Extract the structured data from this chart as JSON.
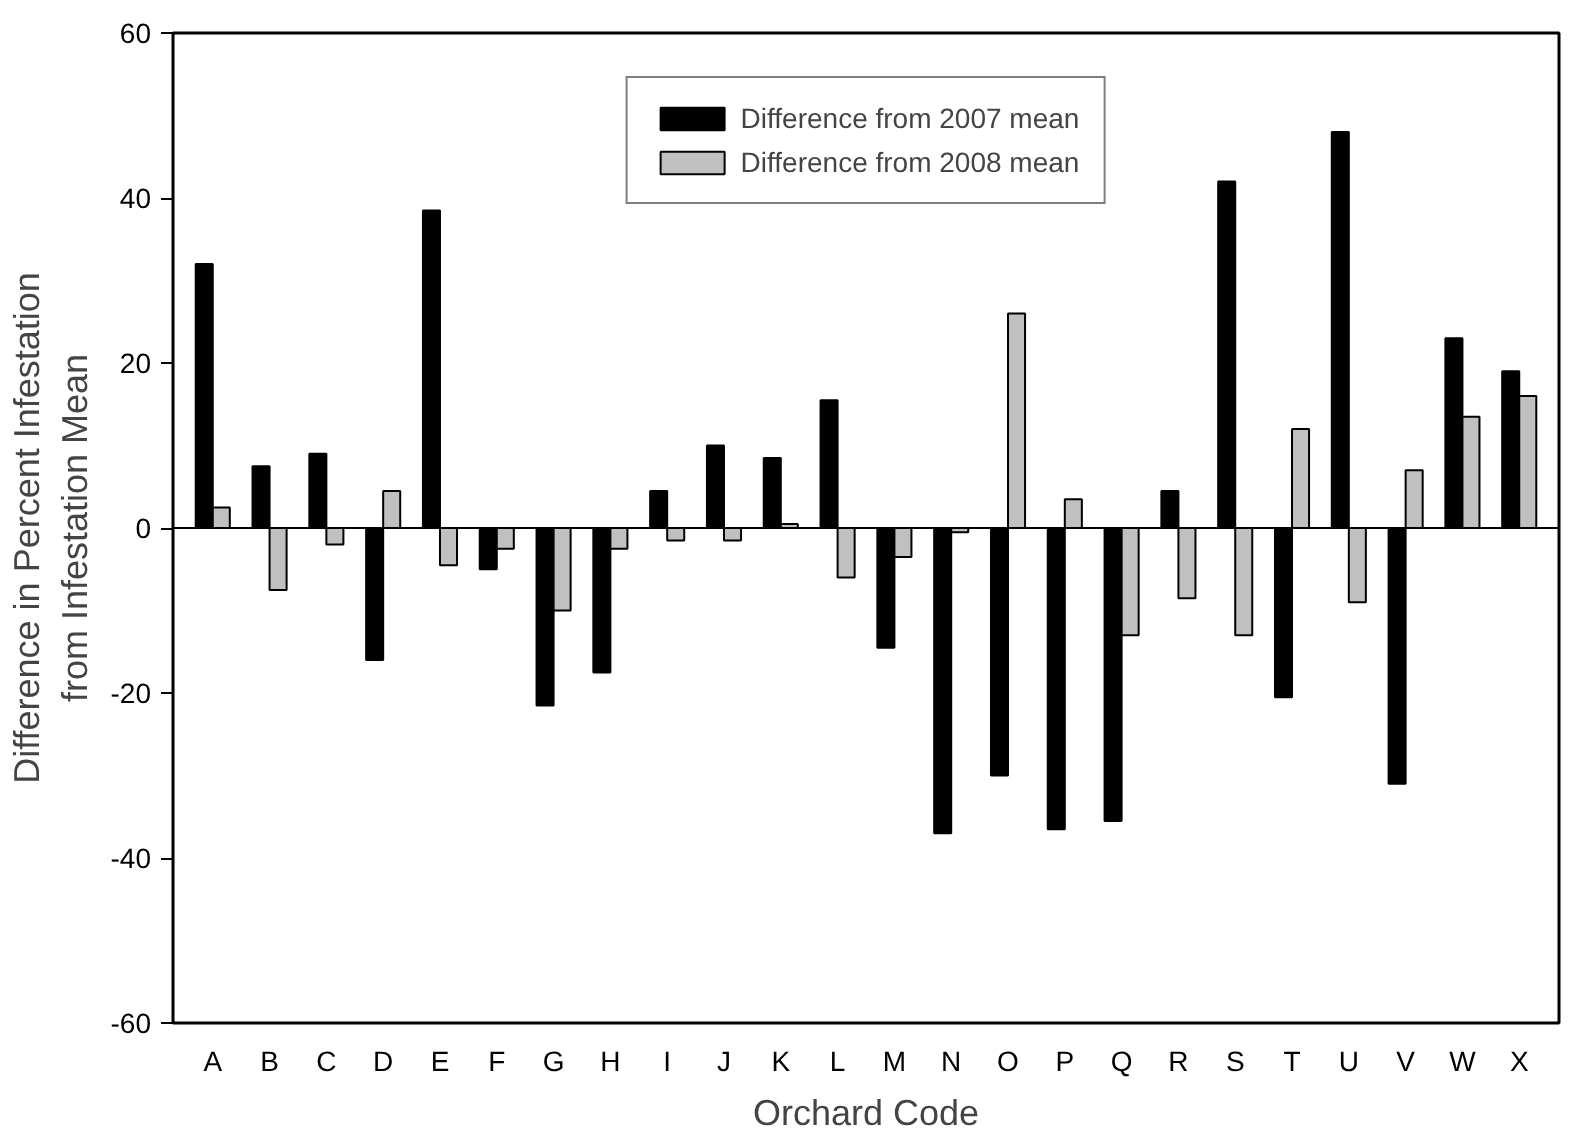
{
  "chart_data": {
    "type": "bar",
    "xlabel": "Orchard Code",
    "ylabel": "Difference in Percent Infestation\nfrom Infestation Mean",
    "categories": [
      "A",
      "B",
      "C",
      "D",
      "E",
      "F",
      "G",
      "H",
      "I",
      "J",
      "K",
      "L",
      "M",
      "N",
      "O",
      "P",
      "Q",
      "R",
      "S",
      "T",
      "U",
      "V",
      "W",
      "X"
    ],
    "series": [
      {
        "name": "Difference from 2007 mean",
        "color": "#000000",
        "values": [
          32,
          7.5,
          9,
          -16,
          38.5,
          -5,
          -21.5,
          -17.5,
          4.5,
          10,
          8.5,
          15.5,
          -14.5,
          -37,
          -30,
          -36.5,
          -35.5,
          4.5,
          42,
          -20.5,
          48,
          -31,
          23,
          19
        ]
      },
      {
        "name": "Difference from 2008 mean",
        "color": "#c0c0c0",
        "values": [
          2.5,
          -7.5,
          -2,
          4.5,
          -4.5,
          -2.5,
          -10,
          -2.5,
          -1.5,
          -1.5,
          0.5,
          -6,
          -3.5,
          -0.5,
          26,
          3.5,
          -13,
          -8.5,
          -13,
          12,
          -9,
          7,
          13.5,
          16
        ]
      }
    ],
    "ylim": [
      -60,
      60
    ],
    "yticks": [
      -60,
      -40,
      -20,
      0,
      20,
      40,
      60
    ],
    "legend": "top",
    "ref_lines": [
      {
        "axis": "y",
        "value": 0,
        "color": "#000000"
      }
    ]
  }
}
